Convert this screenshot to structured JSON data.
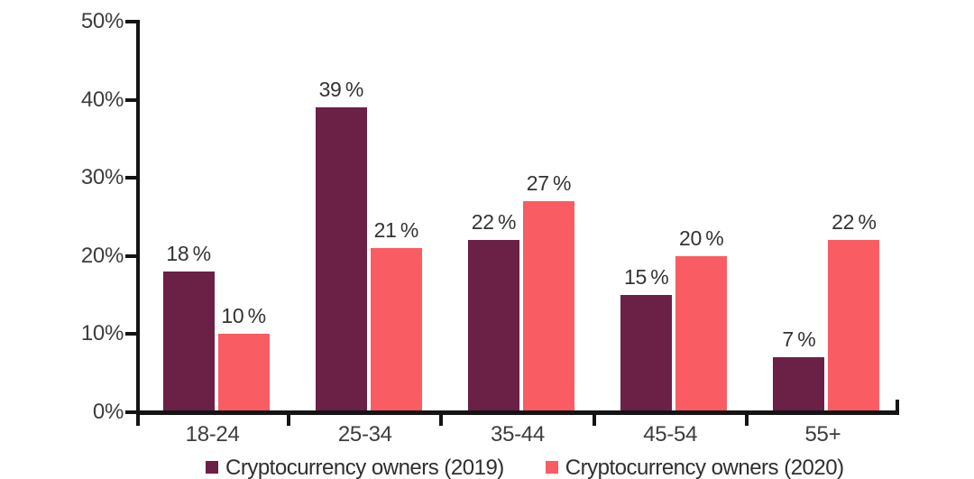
{
  "chart_data": {
    "type": "bar",
    "title": "",
    "categories": [
      "18-24",
      "25-34",
      "35-44",
      "45-54",
      "55+"
    ],
    "series": [
      {
        "name": "Cryptocurrency owners (2019)",
        "color": "#6B2045",
        "values": [
          18,
          39,
          22,
          15,
          7
        ],
        "value_labels": [
          "18 %",
          "39 %",
          "22 %",
          "15 %",
          "7 %"
        ]
      },
      {
        "name": "Cryptocurrency owners (2020)",
        "color": "#F95C63",
        "values": [
          10,
          21,
          27,
          20,
          22
        ],
        "value_labels": [
          "10 %",
          "21 %",
          "27 %",
          "20 %",
          "22 %"
        ]
      }
    ],
    "y_axis": {
      "min": 0,
      "max": 50,
      "step": 10,
      "unit": "%",
      "tick_labels": [
        "0%",
        "10%",
        "20%",
        "30%",
        "40%",
        "50%"
      ]
    },
    "grid": false,
    "legend_position": "bottom"
  }
}
